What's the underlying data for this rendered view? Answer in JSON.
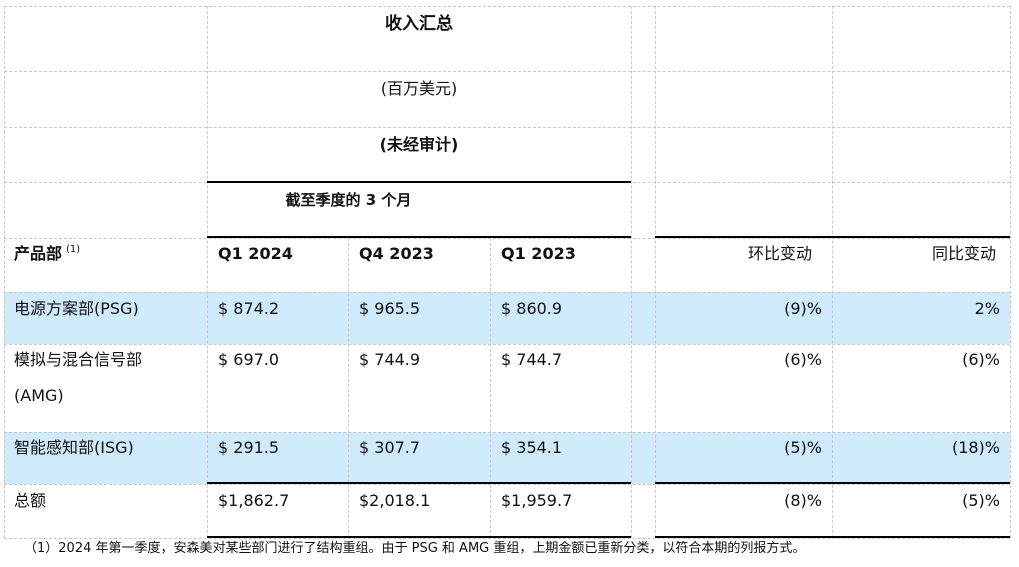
{
  "header": {
    "title": "收入汇总",
    "unit": "(百万美元)",
    "audit": "(未经审计)",
    "period": "截至季度的 3 个月"
  },
  "columns": {
    "segment": "产品部",
    "segment_note": "(1)",
    "q1_2024": "Q1 2024",
    "q4_2023": "Q4 2023",
    "q1_2023": "Q1 2023",
    "qoq": "环比变动",
    "yoy": "同比变动"
  },
  "rows": [
    {
      "name": "电源方案部(PSG)",
      "q1_2024": "$ 874.2",
      "q4_2023": "$ 965.5",
      "q1_2023": "$ 860.9",
      "qoq": "(9)%",
      "yoy": "2%"
    },
    {
      "name": "模拟与混合信号部",
      "name2": "(AMG)",
      "q1_2024": "$ 697.0",
      "q4_2023": "$ 744.9",
      "q1_2023": "$ 744.7",
      "qoq": "(6)%",
      "yoy": "(6)%"
    },
    {
      "name": "智能感知部(ISG)",
      "q1_2024": "$ 291.5",
      "q4_2023": "$ 307.7",
      "q1_2023": "$ 354.1",
      "qoq": "(5)%",
      "yoy": "(18)%"
    },
    {
      "name": "总额",
      "q1_2024": "$1,862.7",
      "q4_2023": "$2,018.1",
      "q1_2023": "$1,959.7",
      "qoq": "(8)%",
      "yoy": "(5)%"
    }
  ],
  "footnote": "（1）2024 年第一季度，安森美对某些部门进行了结构重组。由于 PSG 和 AMG 重组，上期金额已重新分类，以符合本期的列报方式。",
  "colors": {
    "highlight_row": "#cfeafb",
    "grid": "#c8c8c8",
    "rule": "#000000"
  }
}
